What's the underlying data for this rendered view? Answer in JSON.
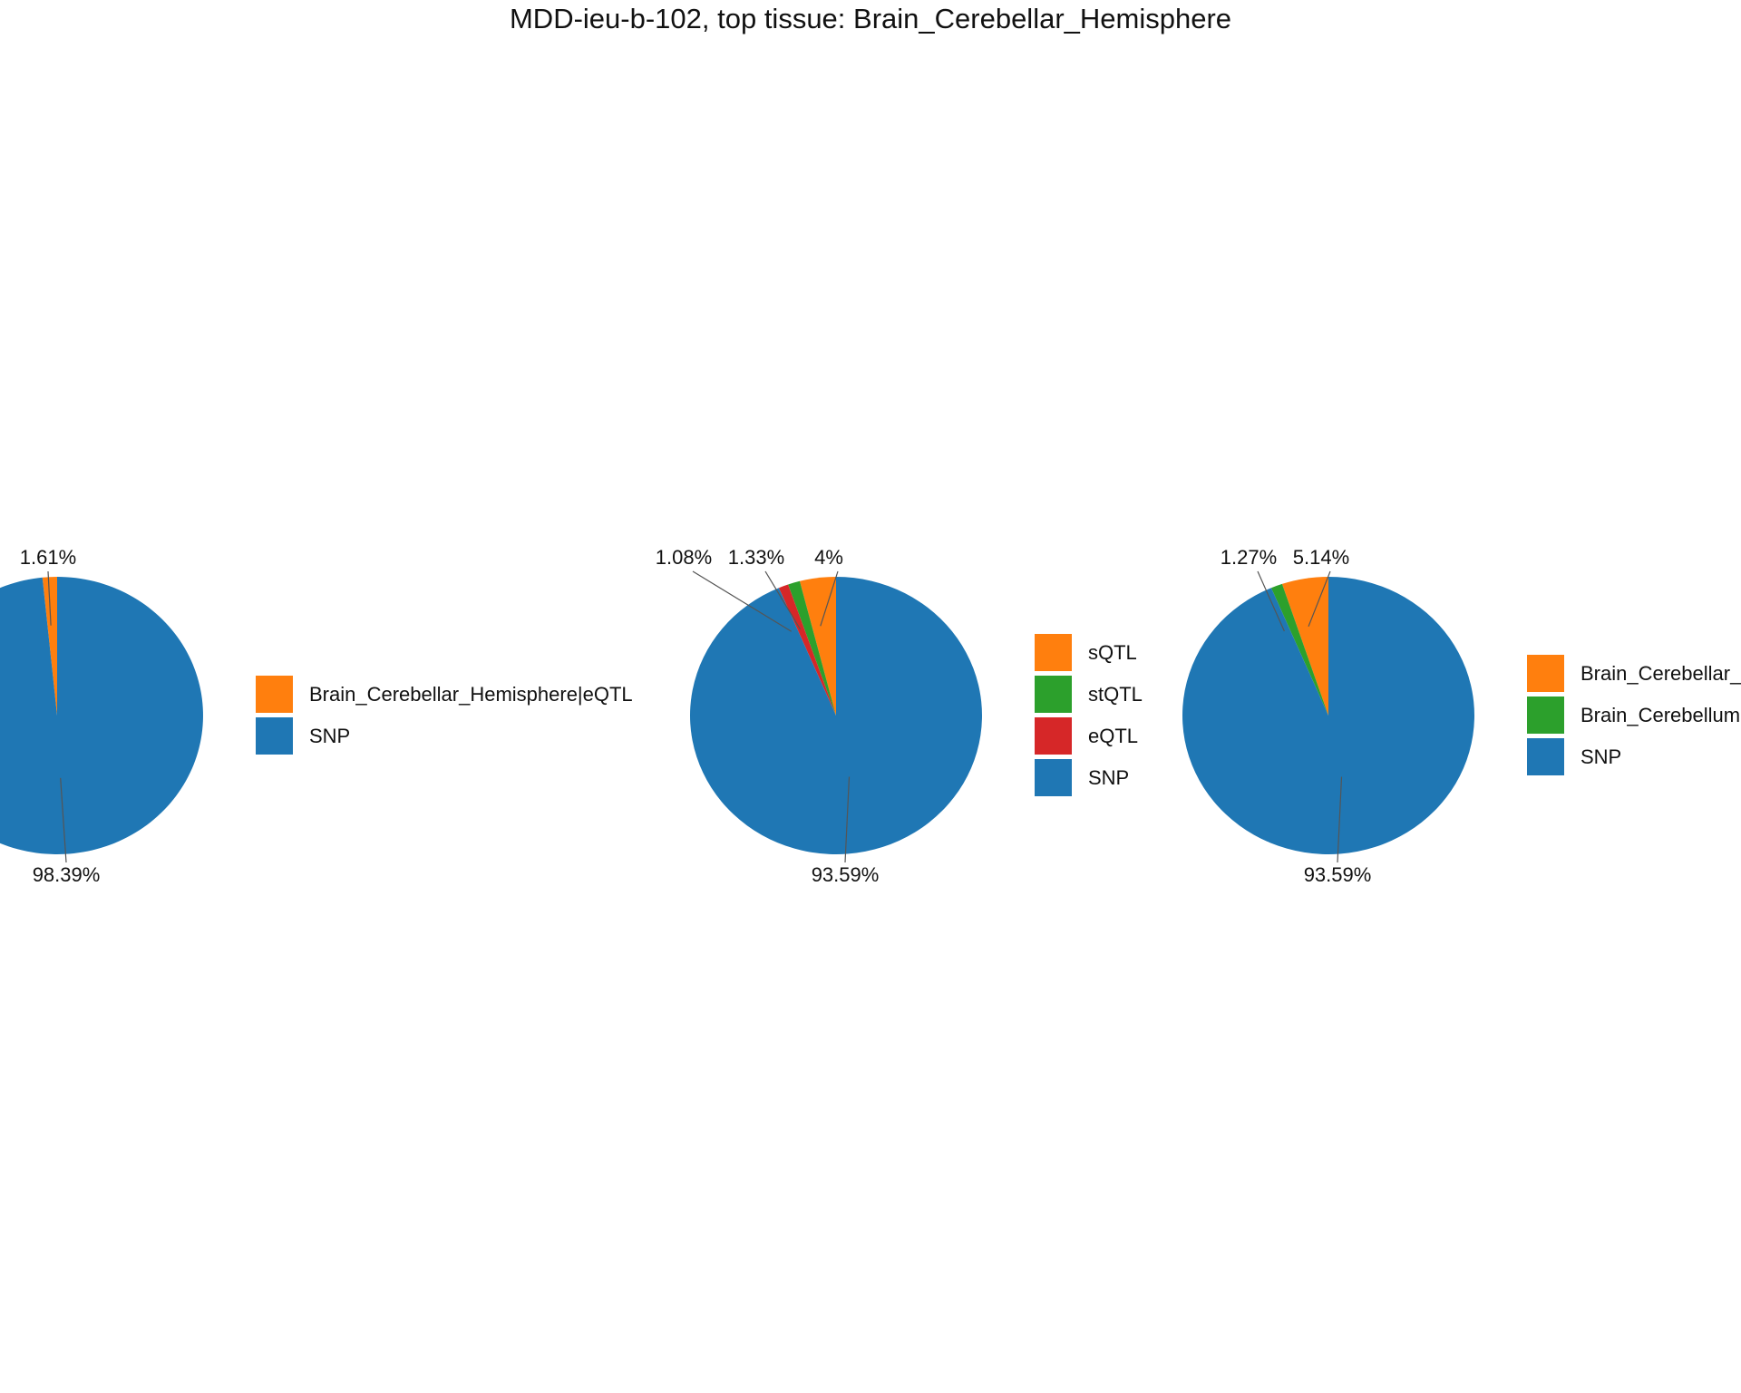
{
  "title": "MDD-ieu-b-102, top tissue: Brain_Cerebellar_Hemisphere",
  "colors": {
    "orange": "#ff7f0e",
    "green": "#2ca02c",
    "red": "#d62728",
    "blue": "#1f77b4"
  },
  "chart_data": [
    {
      "type": "pie",
      "slices": [
        {
          "label": "Brain_Cerebellar_Hemisphere|eQTL",
          "value": 1.61,
          "percent_label": "1.61%",
          "color": "#ff7f0e"
        },
        {
          "label": "SNP",
          "value": 98.39,
          "percent_label": "98.39%",
          "color": "#1f77b4"
        }
      ],
      "legend": [
        "Brain_Cerebellar_Hemisphere|eQTL",
        "SNP"
      ]
    },
    {
      "type": "pie",
      "slices": [
        {
          "label": "sQTL",
          "value": 4,
          "percent_label": "4%",
          "color": "#ff7f0e"
        },
        {
          "label": "stQTL",
          "value": 1.33,
          "percent_label": "1.33%",
          "color": "#2ca02c"
        },
        {
          "label": "eQTL",
          "value": 1.08,
          "percent_label": "1.08%",
          "color": "#d62728"
        },
        {
          "label": "SNP",
          "value": 93.59,
          "percent_label": "93.59%",
          "color": "#1f77b4"
        }
      ],
      "legend": [
        "sQTL",
        "stQTL",
        "eQTL",
        "SNP"
      ]
    },
    {
      "type": "pie",
      "slices": [
        {
          "label": "Brain_Cerebellar_Hemisphere",
          "value": 5.14,
          "percent_label": "5.14%",
          "color": "#ff7f0e"
        },
        {
          "label": "Brain_Cerebellum",
          "value": 1.27,
          "percent_label": "1.27%",
          "color": "#2ca02c"
        },
        {
          "label": "SNP",
          "value": 93.59,
          "percent_label": "93.59%",
          "color": "#1f77b4"
        }
      ],
      "legend": [
        "Brain_Cerebellar_",
        "Brain_Cerebellum",
        "SNP"
      ]
    }
  ]
}
